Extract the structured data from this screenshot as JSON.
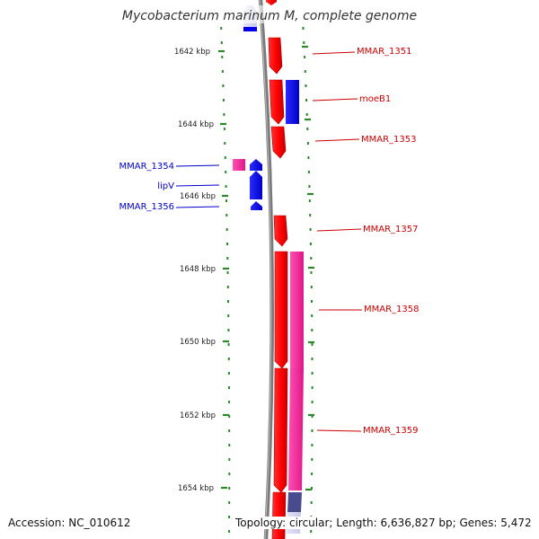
{
  "title": "Mycobacterium marinum M, complete genome",
  "colors": {
    "forward_gene": "#ff0000",
    "forward_gene_shade": "#cc0000",
    "reverse_gene": "#0000ff",
    "pink_gene": "#ff2aa0",
    "backbone": "#888888",
    "tick": "#2a8a2a",
    "forward_label": "#cc0000",
    "reverse_label": "#0000cc"
  },
  "ticks": [
    {
      "kbp": 1642,
      "label": "1642 kbp"
    },
    {
      "kbp": 1644,
      "label": "1644 kbp"
    },
    {
      "kbp": 1646,
      "label": "1646 kbp"
    },
    {
      "kbp": 1648,
      "label": "1648 kbp"
    },
    {
      "kbp": 1650,
      "label": "1650 kbp"
    },
    {
      "kbp": 1652,
      "label": "1652 kbp"
    },
    {
      "kbp": 1654,
      "label": "1654 kbp"
    }
  ],
  "genes_forward": [
    {
      "name": "MMAR_1351",
      "label": "MMAR_1351"
    },
    {
      "name": "moeB1",
      "label": "moeB1"
    },
    {
      "name": "MMAR_1353",
      "label": "MMAR_1353"
    },
    {
      "name": "MMAR_1357",
      "label": "MMAR_1357"
    },
    {
      "name": "MMAR_1358",
      "label": "MMAR_1358"
    },
    {
      "name": "MMAR_1359",
      "label": "MMAR_1359"
    }
  ],
  "genes_reverse": [
    {
      "name": "MMAR_1354",
      "label": "MMAR_1354"
    },
    {
      "name": "lipV",
      "label": "lipV"
    },
    {
      "name": "MMAR_1356",
      "label": "MMAR_1356"
    }
  ],
  "footer": {
    "accession": "Accession: NC_010612",
    "topology": "Topology: circular; Length: 6,636,827 bp; Genes: 5,472"
  }
}
